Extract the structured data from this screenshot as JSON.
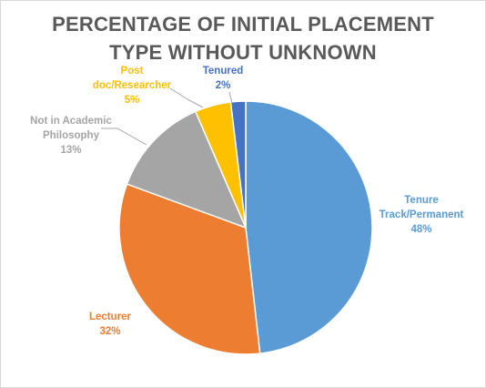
{
  "chart_data": {
    "type": "pie",
    "title_lines": [
      "PERCENTAGE OF INITIAL PLACEMENT",
      "TYPE WITHOUT UNKNOWN"
    ],
    "slices": [
      {
        "id": "tenure-track",
        "label_lines": [
          "Tenure",
          "Track/Permanent"
        ],
        "pct_label": "48%",
        "value": 48.2,
        "color": "#5b9bd5"
      },
      {
        "id": "lecturer",
        "label_lines": [
          "Lecturer"
        ],
        "pct_label": "32%",
        "value": 32.4,
        "color": "#ed7d31"
      },
      {
        "id": "not-academic",
        "label_lines": [
          "Not in Academic",
          "Philosophy"
        ],
        "pct_label": "13%",
        "value": 12.9,
        "color": "#a5a5a5"
      },
      {
        "id": "postdoc",
        "label_lines": [
          "Post",
          "doc/Researcher"
        ],
        "pct_label": "5%",
        "value": 4.6,
        "color": "#ffc000"
      },
      {
        "id": "tenured",
        "label_lines": [
          "Tenured"
        ],
        "pct_label": "2%",
        "value": 1.9,
        "color": "#4472c4"
      }
    ],
    "start_angle_deg": 0,
    "direction": "clockwise",
    "legend": "none",
    "label_style": "outside with leader lines for small slices"
  }
}
